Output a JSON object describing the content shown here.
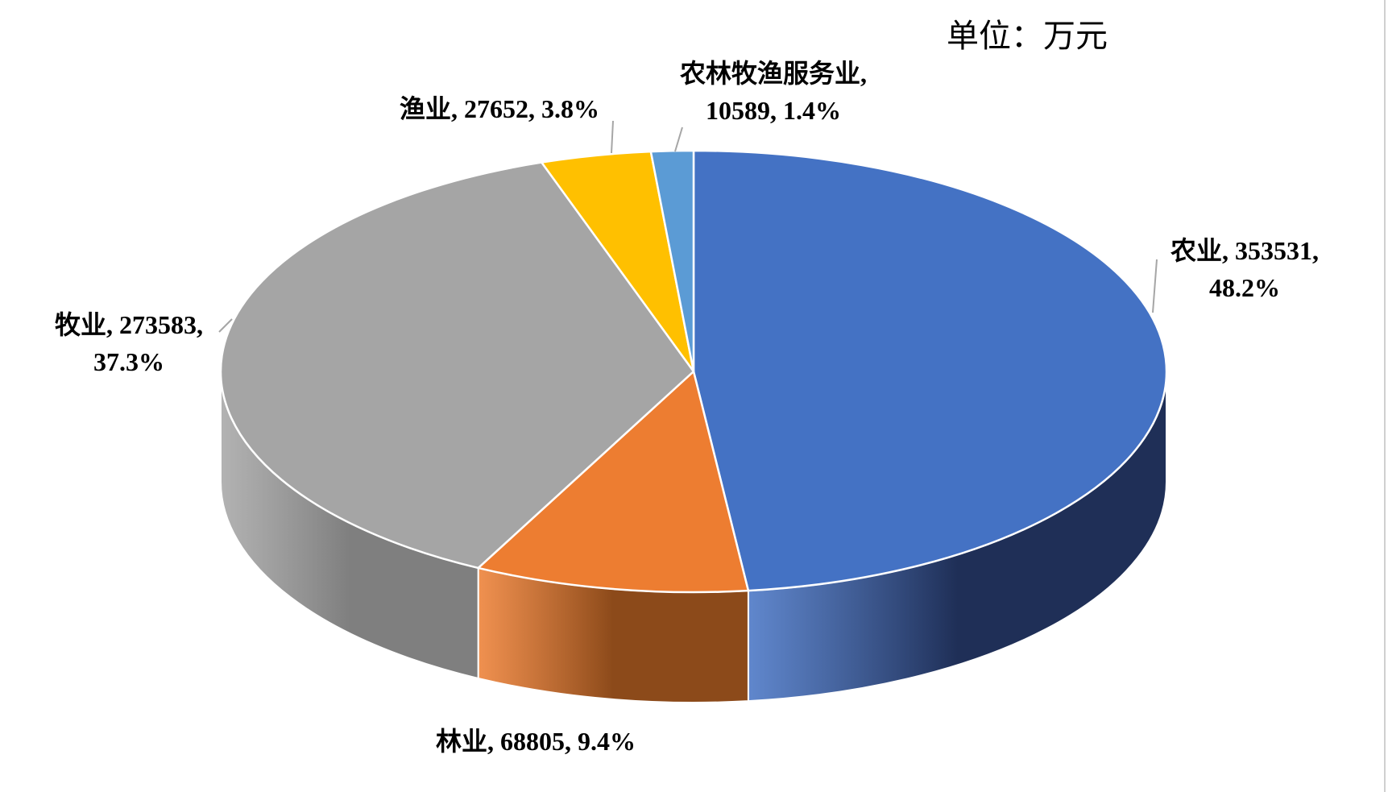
{
  "chart_data": {
    "type": "pie3d",
    "annotation": "单位：万元",
    "categories": [
      "农业",
      "林业",
      "牧业",
      "渔业",
      "农林牧渔服务业"
    ],
    "values": [
      353531,
      68805,
      273583,
      27652,
      10589
    ],
    "value_labels": [
      ", 353531, 48.2%",
      ", 68805, 9.4%",
      ", 273583, 37.3%",
      ", 27652, 3.8%",
      ", 10589, 1.4%"
    ],
    "colors": [
      "#4472c4",
      "#ed7d31",
      "#a5a5a5",
      "#ffc000",
      "#5b9bd5"
    ],
    "side_colors": [
      "#1f2f57",
      "#8c4a1a",
      "#7f7f7f",
      "#a07a00",
      "#3d6d99"
    ]
  }
}
